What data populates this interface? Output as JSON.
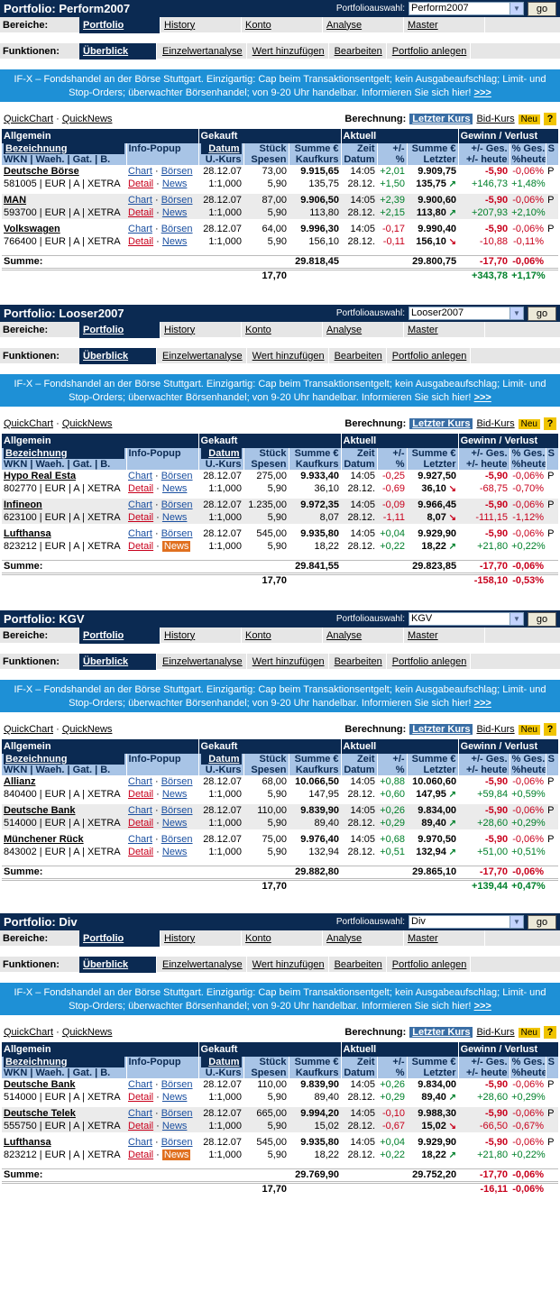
{
  "common": {
    "select_label": "Portfolioauswahl:",
    "go": "go",
    "bereiche_label": "Bereiche:",
    "funktionen_label": "Funktionen:",
    "nav": [
      "Portfolio",
      "History",
      "Konto",
      "Analyse",
      "Master"
    ],
    "funcs": [
      "Überblick",
      "Einzelwertanalyse",
      "Wert hinzufügen",
      "Bearbeiten",
      "Portfolio anlegen"
    ],
    "banner": "IF-X – Fondshandel an der Börse Stuttgart. Einzigartig: Cap beim Transaktionsentgelt; kein Ausgabeaufschlag; Limit- und Stop-Orders; überwachter Börsenhandel; von 9-20 Uhr handelbar. Informieren Sie sich hier!",
    "banner_more": ">>>",
    "quickchart": "QuickChart",
    "quicknews": "QuickNews",
    "berechnung": "Berechnung:",
    "letzter_kurs": "Letzter Kurs",
    "bid_kurs": "Bid-Kurs",
    "neu": "Neu",
    "help": "?",
    "h_allgemein": "Allgemein",
    "h_gekauft": "Gekauft",
    "h_aktuell": "Aktuell",
    "h_gv": "Gewinn / Verlust",
    "c_bez": "Bezeichnung",
    "c_wkn": "WKN | Waeh. | Gat. | B.",
    "c_info": "Info-Popup",
    "c_datum": "Datum",
    "c_ukurs": "U.-Kurs",
    "c_stueck": "Stück",
    "c_spesen": "Spesen",
    "c_summe": "Summe €",
    "c_kaufkurs": "Kaufkurs",
    "c_zeit": "Zeit",
    "c_zdatum": "Datum",
    "c_pm": "+/-",
    "c_pct": "%",
    "c_sumeur": "Summe €",
    "c_letzter": "Letzter",
    "c_ges": "+/- Ges.",
    "c_heute": "+/- heute",
    "c_pges": "% Ges.",
    "c_pheute": "%heute",
    "c_s": "S",
    "chart": "Chart",
    "boersen": "Börsen",
    "detail": "Detail",
    "news": "News",
    "summe": "Summe:",
    "ratio": "1:1,000",
    "datum": "28.12.07",
    "zeit": "14:05",
    "zdate": "28.12.",
    "spesen": "5,90",
    "sumspesen": "17,70"
  },
  "portfolios": [
    {
      "title": "Portfolio: Perform2007",
      "selected": "Perform2007",
      "rows": [
        {
          "name": "Deutsche Börse",
          "wkn": "581005 | EUR | A | XETRA",
          "stueck": "73,00",
          "summe": "9.915,65",
          "kurs": "135,75",
          "pm1": "+2,01",
          "pm2": "+1,50",
          "akt": "9.909,75",
          "letzt": "135,75",
          "dir": "up",
          "ges": "-5,90",
          "heute": "+146,73",
          "pges": "-0,06%",
          "pheute": "+1,48%",
          "s": "P",
          "newsact": false
        },
        {
          "name": "MAN",
          "wkn": "593700 | EUR | A | XETRA",
          "stueck": "87,00",
          "summe": "9.906,50",
          "kurs": "113,80",
          "pm1": "+2,39",
          "pm2": "+2,15",
          "akt": "9.900,60",
          "letzt": "113,80",
          "dir": "up",
          "ges": "-5,90",
          "heute": "+207,93",
          "pges": "-0,06%",
          "pheute": "+2,10%",
          "s": "P",
          "newsact": false
        },
        {
          "name": "Volkswagen",
          "wkn": "766400 | EUR | A | XETRA",
          "stueck": "64,00",
          "summe": "9.996,30",
          "kurs": "156,10",
          "pm1": "-0,17",
          "pm2": "-0,11",
          "akt": "9.990,40",
          "letzt": "156,10",
          "dir": "down",
          "ges": "-5,90",
          "heute": "-10,88",
          "pges": "-0,06%",
          "pheute": "-0,11%",
          "s": "P",
          "newsact": false
        }
      ],
      "sum": {
        "summe": "29.818,45",
        "akt": "29.800,75",
        "ges": "-17,70",
        "heute": "+343,78",
        "pges": "-0,06%",
        "pheute": "+1,17%"
      }
    },
    {
      "title": "Portfolio: Looser2007",
      "selected": "Looser2007",
      "rows": [
        {
          "name": "Hypo Real Esta",
          "wkn": "802770 | EUR | A | XETRA",
          "stueck": "275,00",
          "summe": "9.933,40",
          "kurs": "36,10",
          "pm1": "-0,25",
          "pm2": "-0,69",
          "akt": "9.927,50",
          "letzt": "36,10",
          "dir": "down",
          "ges": "-5,90",
          "heute": "-68,75",
          "pges": "-0,06%",
          "pheute": "-0,70%",
          "s": "P",
          "newsact": false
        },
        {
          "name": "Infineon",
          "wkn": "623100 | EUR | A | XETRA",
          "stueck": "1.235,00",
          "summe": "9.972,35",
          "kurs": "8,07",
          "pm1": "-0,09",
          "pm2": "-1,11",
          "akt": "9.966,45",
          "letzt": "8,07",
          "dir": "down",
          "ges": "-5,90",
          "heute": "-111,15",
          "pges": "-0,06%",
          "pheute": "-1,12%",
          "s": "P",
          "newsact": false
        },
        {
          "name": "Lufthansa",
          "wkn": "823212 | EUR | A | XETRA",
          "stueck": "545,00",
          "summe": "9.935,80",
          "kurs": "18,22",
          "pm1": "+0,04",
          "pm2": "+0,22",
          "akt": "9.929,90",
          "letzt": "18,22",
          "dir": "up",
          "ges": "-5,90",
          "heute": "+21,80",
          "pges": "-0,06%",
          "pheute": "+0,22%",
          "s": "P",
          "newsact": true
        }
      ],
      "sum": {
        "summe": "29.841,55",
        "akt": "29.823,85",
        "ges": "-17,70",
        "heute": "-158,10",
        "pges": "-0,06%",
        "pheute": "-0,53%"
      }
    },
    {
      "title": "Portfolio: KGV",
      "selected": "KGV",
      "rows": [
        {
          "name": "Allianz",
          "wkn": "840400 | EUR | A | XETRA",
          "stueck": "68,00",
          "summe": "10.066,50",
          "kurs": "147,95",
          "pm1": "+0,88",
          "pm2": "+0,60",
          "akt": "10.060,60",
          "letzt": "147,95",
          "dir": "up",
          "ges": "-5,90",
          "heute": "+59,84",
          "pges": "-0,06%",
          "pheute": "+0,59%",
          "s": "P",
          "newsact": false
        },
        {
          "name": "Deutsche Bank",
          "wkn": "514000 | EUR | A | XETRA",
          "stueck": "110,00",
          "summe": "9.839,90",
          "kurs": "89,40",
          "pm1": "+0,26",
          "pm2": "+0,29",
          "akt": "9.834,00",
          "letzt": "89,40",
          "dir": "up",
          "ges": "-5,90",
          "heute": "+28,60",
          "pges": "-0,06%",
          "pheute": "+0,29%",
          "s": "P",
          "newsact": false
        },
        {
          "name": "Münchener Rück",
          "wkn": "843002 | EUR | A | XETRA",
          "stueck": "75,00",
          "summe": "9.976,40",
          "kurs": "132,94",
          "pm1": "+0,68",
          "pm2": "+0,51",
          "akt": "9.970,50",
          "letzt": "132,94",
          "dir": "up",
          "ges": "-5,90",
          "heute": "+51,00",
          "pges": "-0,06%",
          "pheute": "+0,51%",
          "s": "P",
          "newsact": false
        }
      ],
      "sum": {
        "summe": "29.882,80",
        "akt": "29.865,10",
        "ges": "-17,70",
        "heute": "+139,44",
        "pges": "-0,06%",
        "pheute": "+0,47%"
      }
    },
    {
      "title": "Portfolio: Div",
      "selected": "Div",
      "rows": [
        {
          "name": "Deutsche Bank",
          "wkn": "514000 | EUR | A | XETRA",
          "stueck": "110,00",
          "summe": "9.839,90",
          "kurs": "89,40",
          "pm1": "+0,26",
          "pm2": "+0,29",
          "akt": "9.834,00",
          "letzt": "89,40",
          "dir": "up",
          "ges": "-5,90",
          "heute": "+28,60",
          "pges": "-0,06%",
          "pheute": "+0,29%",
          "s": "P",
          "newsact": false
        },
        {
          "name": "Deutsche Telek",
          "wkn": "555750 | EUR | A | XETRA",
          "stueck": "665,00",
          "summe": "9.994,20",
          "kurs": "15,02",
          "pm1": "-0,10",
          "pm2": "-0,67",
          "akt": "9.988,30",
          "letzt": "15,02",
          "dir": "down",
          "ges": "-5,90",
          "heute": "-66,50",
          "pges": "-0,06%",
          "pheute": "-0,67%",
          "s": "P",
          "newsact": false
        },
        {
          "name": "Lufthansa",
          "wkn": "823212 | EUR | A | XETRA",
          "stueck": "545,00",
          "summe": "9.935,80",
          "kurs": "18,22",
          "pm1": "+0,04",
          "pm2": "+0,22",
          "akt": "9.929,90",
          "letzt": "18,22",
          "dir": "up",
          "ges": "-5,90",
          "heute": "+21,80",
          "pges": "-0,06%",
          "pheute": "+0,22%",
          "s": "P",
          "newsact": true
        }
      ],
      "sum": {
        "summe": "29.769,90",
        "akt": "29.752,20",
        "ges": "-17,70",
        "heute": "-16,11",
        "pges": "-0,06%",
        "pheute": "-0,06%"
      }
    }
  ]
}
